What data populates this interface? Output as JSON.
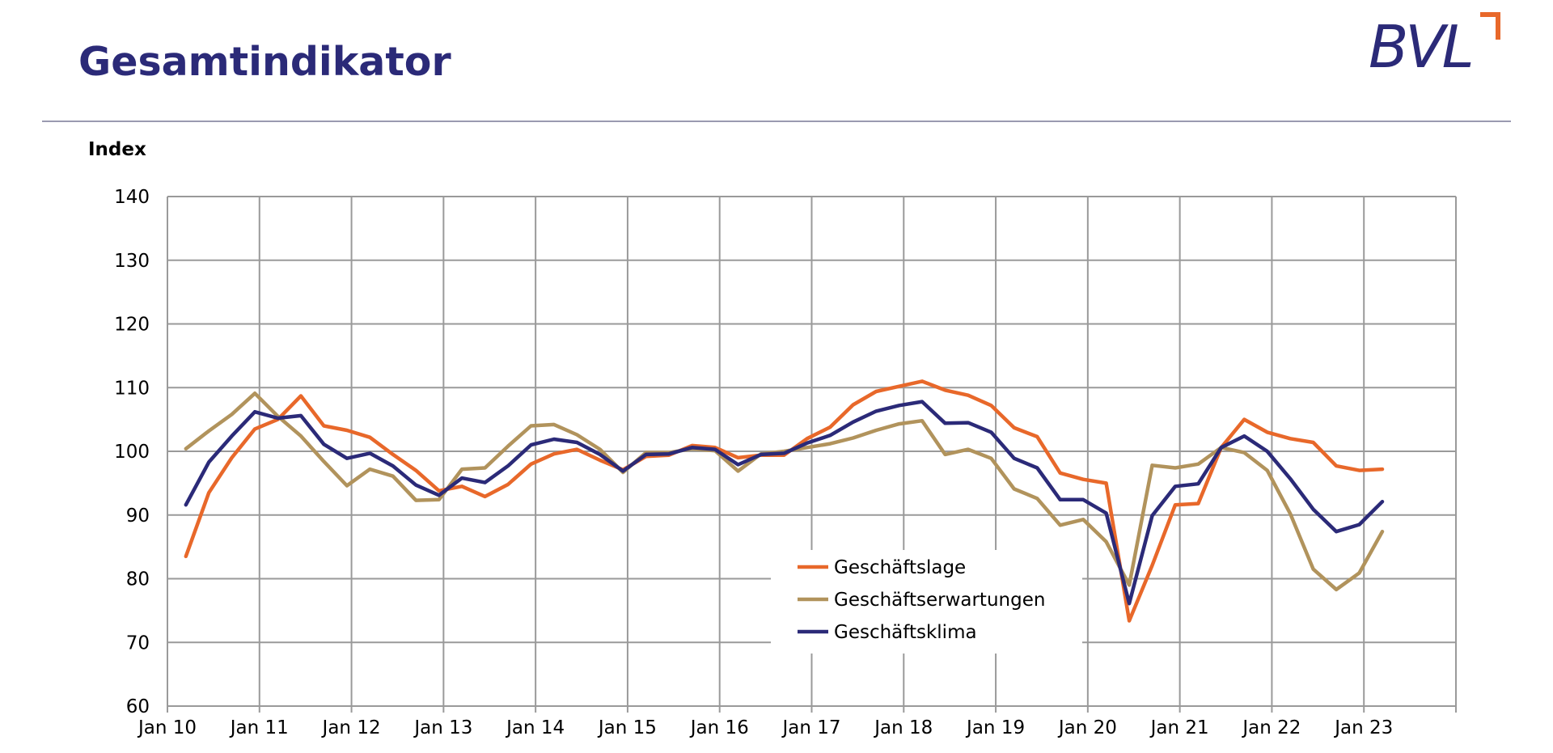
{
  "title": "Gesamtindikator",
  "logo": {
    "text": "BVL",
    "accent": "#e8682a",
    "color": "#2b2a78"
  },
  "chart_data": {
    "type": "line",
    "ylabel": "Index",
    "ylim": [
      60,
      140
    ],
    "yticks": [
      60,
      70,
      80,
      90,
      100,
      110,
      120,
      130,
      140
    ],
    "xlim": [
      0,
      56
    ],
    "xticks": [
      {
        "x": 0,
        "label": "Jan 10"
      },
      {
        "x": 4,
        "label": "Jan 11"
      },
      {
        "x": 8,
        "label": "Jan 12"
      },
      {
        "x": 12,
        "label": "Jan 13"
      },
      {
        "x": 16,
        "label": "Jan 14"
      },
      {
        "x": 20,
        "label": "Jan 15"
      },
      {
        "x": 24,
        "label": "Jan 16"
      },
      {
        "x": 28,
        "label": "Jan 17"
      },
      {
        "x": 32,
        "label": "Jan 18"
      },
      {
        "x": 36,
        "label": "Jan 19"
      },
      {
        "x": 40,
        "label": "Jan 20"
      },
      {
        "x": 44,
        "label": "Jan 21"
      },
      {
        "x": 48,
        "label": "Jan 22"
      },
      {
        "x": 52,
        "label": "Jan 23"
      }
    ],
    "grid": true,
    "legend_position": "center-right",
    "series": [
      {
        "name": "Geschäftslage",
        "color": "#e8682a",
        "points": [
          [
            0.8,
            83.5
          ],
          [
            1.8,
            93.5
          ],
          [
            2.8,
            99
          ],
          [
            3.8,
            103.5
          ],
          [
            4.8,
            105
          ],
          [
            5.8,
            108.7
          ],
          [
            6.8,
            104
          ],
          [
            7.8,
            103.3
          ],
          [
            8.8,
            102.2
          ],
          [
            9.8,
            99.5
          ],
          [
            10.8,
            97
          ],
          [
            11.8,
            93.8
          ],
          [
            12.8,
            94.5
          ],
          [
            13.8,
            92.9
          ],
          [
            14.8,
            94.8
          ],
          [
            15.8,
            98
          ],
          [
            16.8,
            99.6
          ],
          [
            17.8,
            100.3
          ],
          [
            18.8,
            98.6
          ],
          [
            19.8,
            97.1
          ],
          [
            20.8,
            99.2
          ],
          [
            21.8,
            99.4
          ],
          [
            22.8,
            100.9
          ],
          [
            23.8,
            100.6
          ],
          [
            24.8,
            99
          ],
          [
            25.8,
            99.4
          ],
          [
            26.8,
            99.4
          ],
          [
            27.8,
            102
          ],
          [
            28.8,
            103.8
          ],
          [
            29.8,
            107.3
          ],
          [
            30.8,
            109.4
          ],
          [
            31.8,
            110.2
          ],
          [
            32.8,
            111
          ],
          [
            33.8,
            109.6
          ],
          [
            34.8,
            108.8
          ],
          [
            35.8,
            107.2
          ],
          [
            36.8,
            103.7
          ],
          [
            37.8,
            102.3
          ],
          [
            38.8,
            96.6
          ],
          [
            39.8,
            95.6
          ],
          [
            40.8,
            95
          ],
          [
            41.8,
            73.4
          ],
          [
            42.8,
            82.1
          ],
          [
            43.8,
            91.6
          ],
          [
            44.8,
            91.8
          ],
          [
            45.8,
            100.6
          ],
          [
            46.8,
            105
          ],
          [
            47.8,
            103
          ],
          [
            48.8,
            102
          ],
          [
            49.8,
            101.4
          ],
          [
            50.8,
            97.7
          ],
          [
            51.8,
            97
          ],
          [
            52.8,
            97.2
          ]
        ]
      },
      {
        "name": "Geschäftserwartungen",
        "color": "#b1935c",
        "points": [
          [
            0.8,
            100.4
          ],
          [
            1.8,
            103.2
          ],
          [
            2.8,
            105.8
          ],
          [
            3.8,
            109.1
          ],
          [
            4.8,
            105.5
          ],
          [
            5.8,
            102.4
          ],
          [
            6.8,
            98.4
          ],
          [
            7.8,
            94.6
          ],
          [
            8.8,
            97.2
          ],
          [
            9.8,
            96.1
          ],
          [
            10.8,
            92.3
          ],
          [
            11.8,
            92.4
          ],
          [
            12.8,
            97.2
          ],
          [
            13.8,
            97.4
          ],
          [
            14.8,
            100.8
          ],
          [
            15.8,
            104
          ],
          [
            16.8,
            104.2
          ],
          [
            17.8,
            102.6
          ],
          [
            18.8,
            100.3
          ],
          [
            19.8,
            96.7
          ],
          [
            20.8,
            99.8
          ],
          [
            21.8,
            99.8
          ],
          [
            22.8,
            100.4
          ],
          [
            23.8,
            100.1
          ],
          [
            24.8,
            96.9
          ],
          [
            25.8,
            99.6
          ],
          [
            26.8,
            100
          ],
          [
            27.8,
            100.6
          ],
          [
            28.8,
            101.2
          ],
          [
            29.8,
            102.1
          ],
          [
            30.8,
            103.3
          ],
          [
            31.8,
            104.3
          ],
          [
            32.8,
            104.8
          ],
          [
            33.8,
            99.5
          ],
          [
            34.8,
            100.3
          ],
          [
            35.8,
            98.9
          ],
          [
            36.8,
            94.1
          ],
          [
            37.8,
            92.6
          ],
          [
            38.8,
            88.4
          ],
          [
            39.8,
            89.3
          ],
          [
            40.8,
            85.8
          ],
          [
            41.8,
            79
          ],
          [
            42.8,
            97.8
          ],
          [
            43.8,
            97.4
          ],
          [
            44.8,
            98
          ],
          [
            45.8,
            100.6
          ],
          [
            46.8,
            99.8
          ],
          [
            47.8,
            97
          ],
          [
            48.8,
            90.2
          ],
          [
            49.8,
            81.5
          ],
          [
            50.8,
            78.3
          ],
          [
            51.8,
            80.9
          ],
          [
            52.8,
            87.4
          ]
        ]
      },
      {
        "name": "Geschäftsklima",
        "color": "#2b2a78",
        "points": [
          [
            0.8,
            91.6
          ],
          [
            1.8,
            98.3
          ],
          [
            2.8,
            102.4
          ],
          [
            3.8,
            106.2
          ],
          [
            4.8,
            105.2
          ],
          [
            5.8,
            105.6
          ],
          [
            6.8,
            101.1
          ],
          [
            7.8,
            98.9
          ],
          [
            8.8,
            99.7
          ],
          [
            9.8,
            97.7
          ],
          [
            10.8,
            94.7
          ],
          [
            11.8,
            93.1
          ],
          [
            12.8,
            95.8
          ],
          [
            13.8,
            95.1
          ],
          [
            14.8,
            97.7
          ],
          [
            15.8,
            101
          ],
          [
            16.8,
            101.9
          ],
          [
            17.8,
            101.4
          ],
          [
            18.8,
            99.5
          ],
          [
            19.8,
            96.9
          ],
          [
            20.8,
            99.5
          ],
          [
            21.8,
            99.6
          ],
          [
            22.8,
            100.6
          ],
          [
            23.8,
            100.3
          ],
          [
            24.8,
            97.9
          ],
          [
            25.8,
            99.5
          ],
          [
            26.8,
            99.7
          ],
          [
            27.8,
            101.3
          ],
          [
            28.8,
            102.5
          ],
          [
            29.8,
            104.6
          ],
          [
            30.8,
            106.3
          ],
          [
            31.8,
            107.2
          ],
          [
            32.8,
            107.8
          ],
          [
            33.8,
            104.4
          ],
          [
            34.8,
            104.5
          ],
          [
            35.8,
            103
          ],
          [
            36.8,
            98.9
          ],
          [
            37.8,
            97.4
          ],
          [
            38.8,
            92.4
          ],
          [
            39.8,
            92.4
          ],
          [
            40.8,
            90.3
          ],
          [
            41.8,
            76.1
          ],
          [
            42.8,
            89.9
          ],
          [
            43.8,
            94.5
          ],
          [
            44.8,
            94.9
          ],
          [
            45.8,
            100.6
          ],
          [
            46.8,
            102.4
          ],
          [
            47.8,
            100
          ],
          [
            48.8,
            95.7
          ],
          [
            49.8,
            90.9
          ],
          [
            50.8,
            87.4
          ],
          [
            51.8,
            88.5
          ],
          [
            52.8,
            92.1
          ]
        ]
      }
    ]
  }
}
